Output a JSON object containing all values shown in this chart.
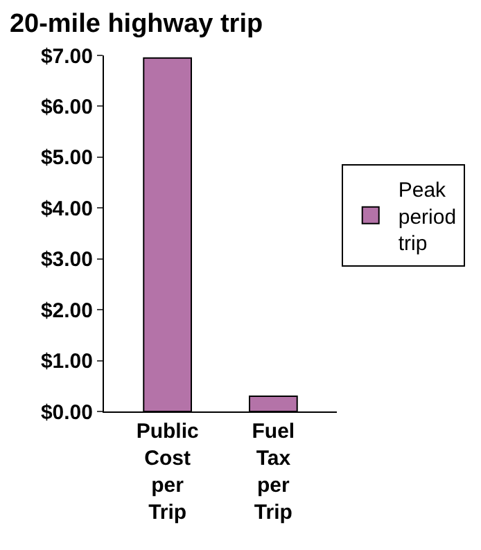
{
  "chart_data": {
    "type": "bar",
    "title": "20-mile highway trip",
    "categories": [
      "Public Cost per Trip",
      "Fuel Tax per Trip"
    ],
    "series": [
      {
        "name": "Peak period trip",
        "color": "#b473a8",
        "values": [
          6.95,
          0.3
        ]
      }
    ],
    "ylim": [
      0,
      7
    ],
    "yticks": [
      {
        "value": 0,
        "label": "$0.00"
      },
      {
        "value": 1,
        "label": "$1.00"
      },
      {
        "value": 2,
        "label": "$2.00"
      },
      {
        "value": 3,
        "label": "$3.00"
      },
      {
        "value": 4,
        "label": "$4.00"
      },
      {
        "value": 5,
        "label": "$5.00"
      },
      {
        "value": 6,
        "label": "$6.00"
      },
      {
        "value": 7,
        "label": "$7.00"
      }
    ],
    "grid": false,
    "legend": "right"
  }
}
